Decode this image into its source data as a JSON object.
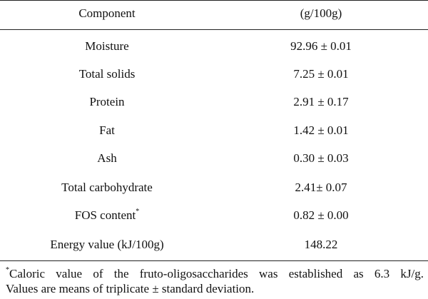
{
  "table": {
    "headers": {
      "component": "Component",
      "value": "(g/100g)"
    },
    "rows": [
      {
        "component": "Moisture",
        "value": "92.96 ± 0.01"
      },
      {
        "component": "Total solids",
        "value": "7.25 ± 0.01"
      },
      {
        "component": "Protein",
        "value": "2.91 ± 0.17"
      },
      {
        "component": "Fat",
        "value": "1.42 ± 0.01"
      },
      {
        "component": "Ash",
        "value": "0.30 ± 0.03"
      },
      {
        "component": "Total carbohydrate",
        "value": "2.41± 0.07"
      },
      {
        "component": "FOS content",
        "marker": "*",
        "value": "0.82 ± 0.00"
      },
      {
        "component": "Energy value (kJ/100g)",
        "value": "148.22"
      }
    ]
  },
  "footnote": {
    "marker": "*",
    "line1_words": [
      "Caloric",
      "value",
      "of",
      "the",
      "fruto-oligosaccharides",
      "was",
      "established",
      "as",
      "6.3",
      "kJ/g."
    ],
    "line2": "Values are means of triplicate ± standard deviation."
  }
}
